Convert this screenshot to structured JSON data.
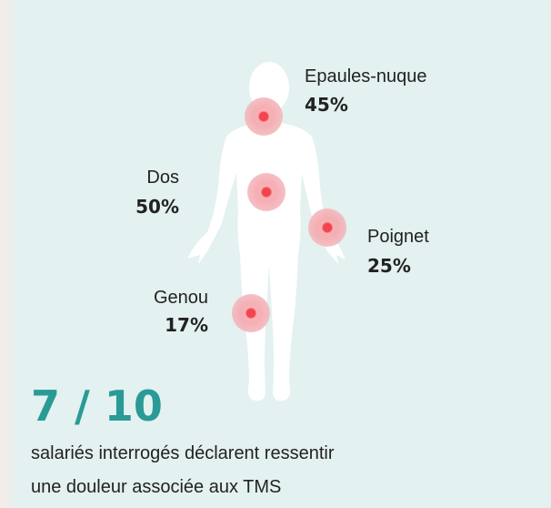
{
  "callouts": [
    {
      "label": "Epaules-nuque",
      "value": "45%"
    },
    {
      "label": "Dos",
      "value": "50%"
    },
    {
      "label": "Poignet",
      "value": "25%"
    },
    {
      "label": "Genou",
      "value": "17%"
    }
  ],
  "headline": "7 / 10",
  "caption": [
    "salariés interrogés déclarent ressentir",
    "une douleur associée aux TMS"
  ]
}
